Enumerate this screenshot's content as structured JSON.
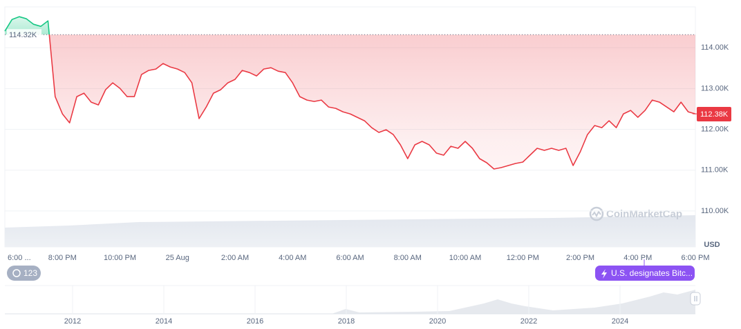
{
  "chart_data": {
    "type": "line",
    "categories": [
      "6:00 ...",
      null,
      null,
      null,
      null,
      null,
      null,
      null,
      "8:00 PM",
      null,
      null,
      null,
      null,
      null,
      null,
      null,
      "10:00 PM",
      null,
      null,
      null,
      null,
      null,
      null,
      null,
      "25 Aug",
      null,
      null,
      null,
      null,
      null,
      null,
      null,
      "2:00 AM",
      null,
      null,
      null,
      null,
      null,
      null,
      null,
      "4:00 AM",
      null,
      null,
      null,
      null,
      null,
      null,
      null,
      "6:00 AM",
      null,
      null,
      null,
      null,
      null,
      null,
      null,
      "8:00 AM",
      null,
      null,
      null,
      null,
      null,
      null,
      null,
      "10:00 AM",
      null,
      null,
      null,
      null,
      null,
      null,
      null,
      "12:00 PM",
      null,
      null,
      null,
      null,
      null,
      null,
      null,
      "2:00 PM",
      null,
      null,
      null,
      null,
      null,
      null,
      null,
      "4:00 PM",
      null,
      null,
      null,
      null,
      null,
      null,
      null,
      "6:00 PM"
    ],
    "values": [
      114405,
      114692,
      114760,
      114709,
      114574,
      114523,
      114658,
      112802,
      112380,
      112160,
      112802,
      112886,
      112667,
      112599,
      112970,
      113139,
      113004,
      112802,
      112802,
      113342,
      113443,
      113477,
      113612,
      113528,
      113477,
      113392,
      113139,
      112262,
      112549,
      112886,
      112970,
      113139,
      113224,
      113443,
      113392,
      113308,
      113477,
      113510,
      113426,
      113392,
      113139,
      112802,
      112717,
      112684,
      112717,
      112549,
      112515,
      112430,
      112380,
      112295,
      112211,
      112042,
      111924,
      111991,
      111873,
      111620,
      111282,
      111620,
      111705,
      111620,
      111418,
      111367,
      111586,
      111536,
      111705,
      111536,
      111282,
      111181,
      111030,
      111063,
      111114,
      111165,
      111198,
      111367,
      111536,
      111485,
      111536,
      111485,
      111536,
      111114,
      111451,
      111873,
      112093,
      112042,
      112211,
      112042,
      112380,
      112464,
      112295,
      112464,
      112717,
      112667,
      112549,
      112430,
      112667,
      112430,
      112380
    ],
    "up_color": "#16c784",
    "down_color": "#ea3943",
    "ylim": [
      109120,
      115000
    ],
    "yticks": [
      {
        "value": 110000,
        "label": "110.00K"
      },
      {
        "value": 111000,
        "label": "111.00K"
      },
      {
        "value": 112000,
        "label": "112.00K"
      },
      {
        "value": 113000,
        "label": "113.00K"
      },
      {
        "value": 114000,
        "label": "114.00K"
      }
    ],
    "grid": true,
    "baseline": {
      "value": 114320,
      "label": "114.32K"
    },
    "last_price": {
      "value": 112380,
      "label": "112.38K"
    },
    "unit": "USD",
    "watermark": "CoinMarketCap"
  },
  "history_badge": "123",
  "event_badge": "U.S. designates Bitc...",
  "navigator": {
    "labels": [
      "2012",
      "2014",
      "2016",
      "2018",
      "2020",
      "2022",
      "2024"
    ]
  }
}
